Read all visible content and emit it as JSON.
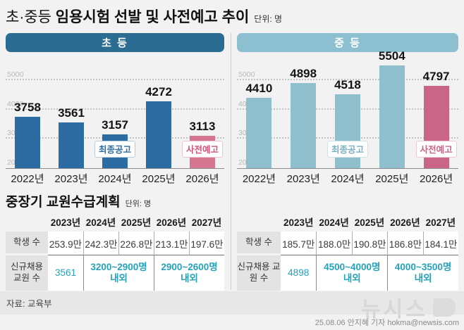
{
  "page": {
    "title_prefix": "초·중등 ",
    "title_main": "임용시험 선발 및 사전예고 추이",
    "title_unit": "단위: 명",
    "plan_title": "중장기 교원수급계획",
    "plan_unit": "단위: 명",
    "source": "자료: 교육부",
    "watermark": "뉴시스",
    "credit": "25.08.06 안지혜 기자 hokma@newsis.com"
  },
  "chart_data": [
    {
      "type": "bar",
      "title": "초 등",
      "categories": [
        "2022년",
        "2023년",
        "2024년",
        "2025년",
        "2026년"
      ],
      "values": [
        3758,
        3561,
        3157,
        4272,
        3113
      ],
      "highlight_index": 4,
      "ylim": [
        2000,
        5600
      ],
      "y_ticks": [
        5000,
        4000,
        3000,
        2000
      ],
      "grid": "dotted horizontal",
      "legend_position": "none",
      "header_bg": "#2b6c93",
      "bar_color": "#2d6ca3",
      "highlight_color": "#d5758f",
      "annotations": [
        {
          "label": "최종공고",
          "bar_index": 2,
          "color": "#2d6ca3"
        },
        {
          "label": "사전예고",
          "bar_index": 4,
          "color": "#d4547c"
        }
      ]
    },
    {
      "type": "bar",
      "title": "중 등",
      "categories": [
        "2022년",
        "2023년",
        "2024년",
        "2025년",
        "2026년"
      ],
      "values": [
        4410,
        4898,
        4518,
        5504,
        4797
      ],
      "highlight_index": 4,
      "ylim": [
        2000,
        5600
      ],
      "y_ticks": [
        5000,
        4000,
        3000,
        2000
      ],
      "grid": "dotted horizontal",
      "legend_position": "none",
      "header_bg": "#8cc0d0",
      "bar_color": "#8fbecd",
      "highlight_color": "#ca6587",
      "annotations": [
        {
          "label": "최종공고",
          "bar_index": 2,
          "color": "#79aec2"
        },
        {
          "label": "사전예고",
          "bar_index": 4,
          "color": "#ca6587"
        }
      ]
    },
    {
      "type": "table",
      "title": "중장기 교원수급계획 — 초등",
      "columns": [
        "2023년",
        "2024년",
        "2025년",
        "2026년",
        "2027년"
      ],
      "accent_color": "#23a2bb",
      "rows": [
        {
          "label": "학생 수",
          "accent": false,
          "cells": [
            {
              "text": "253.9만",
              "span": 1
            },
            {
              "text": "242.3만",
              "span": 1
            },
            {
              "text": "226.8만",
              "span": 1
            },
            {
              "text": "213.1만",
              "span": 1
            },
            {
              "text": "197.6만",
              "span": 1
            }
          ]
        },
        {
          "label": "신규채용 교원 수",
          "accent": true,
          "cells": [
            {
              "text": "3561",
              "span": 1,
              "bold": false
            },
            {
              "text": "3200~2900명 내외",
              "span": 2,
              "bold": true
            },
            {
              "text": "2900~2600명 내외",
              "span": 2,
              "bold": true
            }
          ]
        }
      ]
    },
    {
      "type": "table",
      "title": "중장기 교원수급계획 — 중등",
      "columns": [
        "2023년",
        "2024년",
        "2025년",
        "2026년",
        "2027년"
      ],
      "accent_color": "#23a2bb",
      "rows": [
        {
          "label": "학생 수",
          "accent": false,
          "cells": [
            {
              "text": "185.7만",
              "span": 1
            },
            {
              "text": "188.0만",
              "span": 1
            },
            {
              "text": "190.8만",
              "span": 1
            },
            {
              "text": "186.8만",
              "span": 1
            },
            {
              "text": "184.1만",
              "span": 1
            }
          ]
        },
        {
          "label": "신규채용 교원 수",
          "accent": true,
          "cells": [
            {
              "text": "4898",
              "span": 1,
              "bold": false
            },
            {
              "text": "4500~4000명 내외",
              "span": 2,
              "bold": true
            },
            {
              "text": "4000~3500명 내외",
              "span": 2,
              "bold": true
            }
          ]
        }
      ]
    }
  ]
}
